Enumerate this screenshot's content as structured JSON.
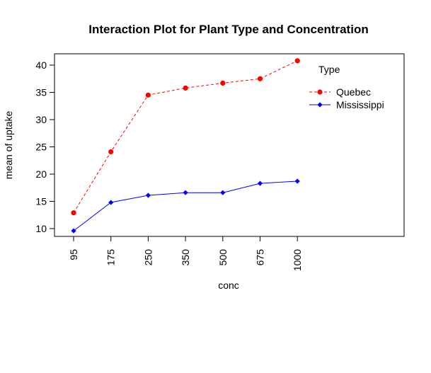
{
  "chart_data": {
    "type": "line",
    "title": "Interaction Plot for Plant Type and Concentration",
    "xlabel": "conc",
    "ylabel": "mean of  uptake",
    "categories": [
      "95",
      "175",
      "250",
      "350",
      "500",
      "675",
      "1000"
    ],
    "ylim": [
      8,
      42
    ],
    "yticks": [
      10,
      15,
      20,
      25,
      30,
      35,
      40
    ],
    "legend_title": "Type",
    "legend_position": "top-right",
    "grid": false,
    "series": [
      {
        "name": "Quebec",
        "values": [
          12.9,
          24.1,
          34.5,
          35.8,
          36.7,
          37.5,
          40.8
        ],
        "color": "#ff0000",
        "line_style": "dashed",
        "marker": "circle"
      },
      {
        "name": "Mississippi",
        "values": [
          9.6,
          14.8,
          16.1,
          16.6,
          16.6,
          18.3,
          18.7
        ],
        "color": "#0000ff",
        "line_style": "solid",
        "marker": "diamond"
      }
    ]
  }
}
